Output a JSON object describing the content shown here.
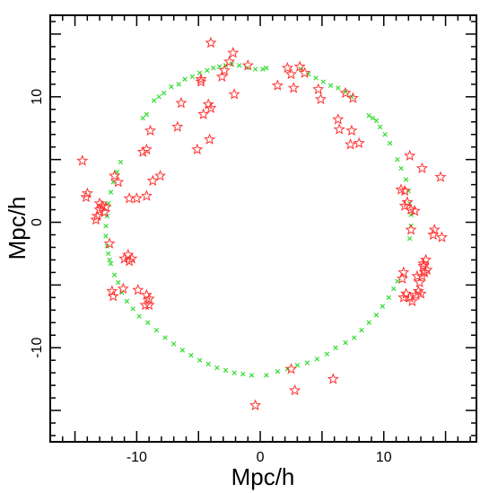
{
  "chart_data": {
    "type": "scatter",
    "xlabel": "Mpc/h",
    "ylabel": "Mpc/h",
    "xlim": [
      -17,
      17.5
    ],
    "ylim": [
      -17.5,
      16.5
    ],
    "x_ticks": [
      -10,
      0,
      10
    ],
    "y_ticks": [
      -10,
      0,
      10
    ],
    "grid": false,
    "legend": "none",
    "series": [
      {
        "marker": "cross",
        "color": "#33dd33",
        "points": [
          [
            -7.2,
            10.8
          ],
          [
            -6.6,
            11.0
          ],
          [
            -6.1,
            11.4
          ],
          [
            -5.5,
            11.6
          ],
          [
            -4.9,
            11.9
          ],
          [
            -4.3,
            12.1
          ],
          [
            -3.8,
            12.3
          ],
          [
            -3.3,
            12.4
          ],
          [
            -2.8,
            12.5
          ],
          [
            -2.3,
            12.6
          ],
          [
            -1.7,
            12.5
          ],
          [
            -1.1,
            12.3
          ],
          [
            -0.4,
            12.2
          ],
          [
            0.2,
            12.2
          ],
          [
            0.5,
            12.3
          ],
          [
            -9.5,
            8.3
          ],
          [
            -9.2,
            8.6
          ],
          [
            -8.6,
            9.7
          ],
          [
            -8.2,
            10.0
          ],
          [
            -7.8,
            10.3
          ],
          [
            3.3,
            12.2
          ],
          [
            3.9,
            11.8
          ],
          [
            4.5,
            11.5
          ],
          [
            5.1,
            11.2
          ],
          [
            5.7,
            10.9
          ],
          [
            6.3,
            10.7
          ],
          [
            6.9,
            10.4
          ],
          [
            7.4,
            10.0
          ],
          [
            8.8,
            8.5
          ],
          [
            9.1,
            8.3
          ],
          [
            9.4,
            8.1
          ],
          [
            9.7,
            7.6
          ],
          [
            10.1,
            7.0
          ],
          [
            10.5,
            6.3
          ],
          [
            11.1,
            5.0
          ],
          [
            11.4,
            4.3
          ],
          [
            11.8,
            3.4
          ],
          [
            12.0,
            2.5
          ],
          [
            12.1,
            1.5
          ],
          [
            12.2,
            0.6
          ],
          [
            12.2,
            -0.3
          ],
          [
            12.1,
            -1.3
          ],
          [
            -11.3,
            4.8
          ],
          [
            -11.6,
            4.0
          ],
          [
            -11.9,
            3.2
          ],
          [
            -12.1,
            2.4
          ],
          [
            -12.3,
            1.5
          ],
          [
            -12.4,
            0.5
          ],
          [
            -12.5,
            -0.3
          ],
          [
            -12.5,
            -1.1
          ],
          [
            -12.4,
            -1.9
          ],
          [
            -12.3,
            -2.5
          ],
          [
            -12.2,
            -3.0
          ],
          [
            -12.1,
            -3.3
          ],
          [
            -11.8,
            -4.2
          ],
          [
            -11.5,
            -4.8
          ],
          [
            -11.2,
            -5.6
          ],
          [
            -10.8,
            -6.3
          ],
          [
            -10.3,
            -6.9
          ],
          [
            -9.8,
            -7.5
          ],
          [
            -9.1,
            -8.0
          ],
          [
            -8.4,
            -8.6
          ],
          [
            -7.7,
            -9.2
          ],
          [
            -7.0,
            -9.7
          ],
          [
            -6.3,
            -10.2
          ],
          [
            -5.6,
            -10.6
          ],
          [
            -4.9,
            -11.0
          ],
          [
            -4.2,
            -11.3
          ],
          [
            -3.5,
            -11.6
          ],
          [
            -2.8,
            -11.8
          ],
          [
            -2.1,
            -12.0
          ],
          [
            -1.4,
            -12.1
          ],
          [
            -0.7,
            -12.2
          ],
          [
            0.5,
            -12.2
          ],
          [
            1.4,
            -11.9
          ],
          [
            2.2,
            -11.7
          ],
          [
            3.0,
            -11.4
          ],
          [
            3.8,
            -11.2
          ],
          [
            4.6,
            -10.9
          ],
          [
            5.4,
            -10.5
          ],
          [
            6.1,
            -10.0
          ],
          [
            6.9,
            -9.6
          ],
          [
            7.6,
            -9.2
          ],
          [
            8.2,
            -8.6
          ],
          [
            8.8,
            -8.0
          ],
          [
            9.4,
            -7.4
          ],
          [
            9.9,
            -6.7
          ],
          [
            10.4,
            -6.0
          ],
          [
            10.8,
            -5.3
          ],
          [
            11.1,
            -4.7
          ]
        ]
      },
      {
        "marker": "star",
        "color": "#ff3333",
        "points": [
          [
            -4.0,
            14.3
          ],
          [
            -2.2,
            13.5
          ],
          [
            -2.5,
            12.8
          ],
          [
            -2.9,
            12.1
          ],
          [
            -3.1,
            11.6
          ],
          [
            -4.8,
            11.4
          ],
          [
            -2.1,
            10.2
          ],
          [
            -4.2,
            9.4
          ],
          [
            -4.0,
            9.1
          ],
          [
            -4.6,
            8.6
          ],
          [
            -4.8,
            11.2
          ],
          [
            -6.4,
            9.5
          ],
          [
            -6.7,
            7.6
          ],
          [
            -4.1,
            6.6
          ],
          [
            -8.9,
            7.3
          ],
          [
            -5.1,
            5.8
          ],
          [
            -1.0,
            12.5
          ],
          [
            2.2,
            12.3
          ],
          [
            2.5,
            11.8
          ],
          [
            3.2,
            12.4
          ],
          [
            3.6,
            11.9
          ],
          [
            1.4,
            10.9
          ],
          [
            2.7,
            10.7
          ],
          [
            4.7,
            10.6
          ],
          [
            4.9,
            9.8
          ],
          [
            6.9,
            10.3
          ],
          [
            7.5,
            9.9
          ],
          [
            6.3,
            8.2
          ],
          [
            6.4,
            7.4
          ],
          [
            7.4,
            7.3
          ],
          [
            8.0,
            6.3
          ],
          [
            7.3,
            6.2
          ],
          [
            -14.4,
            4.9
          ],
          [
            -14.0,
            2.3
          ],
          [
            -14.1,
            2.0
          ],
          [
            -13.0,
            1.5
          ],
          [
            -12.8,
            1.3
          ],
          [
            -13.0,
            1.0
          ],
          [
            -12.5,
            1.2
          ],
          [
            -13.2,
            0.5
          ],
          [
            -13.3,
            0.2
          ],
          [
            -12.6,
            0.8
          ],
          [
            -11.8,
            3.7
          ],
          [
            -11.5,
            3.2
          ],
          [
            -10.6,
            1.9
          ],
          [
            -10.0,
            1.9
          ],
          [
            -9.2,
            2.1
          ],
          [
            -8.7,
            3.3
          ],
          [
            -8.1,
            3.7
          ],
          [
            -9.5,
            5.6
          ],
          [
            -9.2,
            5.8
          ],
          [
            -12.2,
            -1.7
          ],
          [
            -11.0,
            -2.9
          ],
          [
            -10.7,
            -2.6
          ],
          [
            -10.4,
            -2.9
          ],
          [
            -10.6,
            -3.1
          ],
          [
            -11.1,
            -5.3
          ],
          [
            -12.0,
            -5.5
          ],
          [
            -11.9,
            -5.9
          ],
          [
            -9.9,
            -5.4
          ],
          [
            -9.2,
            -5.8
          ],
          [
            -9.0,
            -6.1
          ],
          [
            -9.3,
            -6.6
          ],
          [
            -9.0,
            -6.6
          ],
          [
            12.1,
            5.3
          ],
          [
            13.1,
            4.3
          ],
          [
            14.6,
            3.6
          ],
          [
            11.4,
            2.6
          ],
          [
            11.7,
            2.5
          ],
          [
            11.9,
            1.6
          ],
          [
            11.7,
            1.3
          ],
          [
            12.2,
            1.0
          ],
          [
            12.5,
            0.9
          ],
          [
            12.2,
            -0.6
          ],
          [
            14.1,
            -0.6
          ],
          [
            14.0,
            -1.0
          ],
          [
            14.7,
            -1.2
          ],
          [
            11.6,
            -4.0
          ],
          [
            11.5,
            -4.5
          ],
          [
            12.7,
            -4.3
          ],
          [
            13.2,
            -3.3
          ],
          [
            13.4,
            -3.0
          ],
          [
            13.2,
            -3.5
          ],
          [
            13.5,
            -3.8
          ],
          [
            13.3,
            -4.0
          ],
          [
            13.1,
            -4.3
          ],
          [
            12.9,
            -4.8
          ],
          [
            12.8,
            -5.5
          ],
          [
            13.0,
            -5.7
          ],
          [
            12.6,
            -5.8
          ],
          [
            12.3,
            -6.3
          ],
          [
            12.1,
            -6.0
          ],
          [
            11.8,
            -5.7
          ],
          [
            11.6,
            -6.0
          ],
          [
            2.5,
            -11.7
          ],
          [
            2.8,
            -13.4
          ],
          [
            5.9,
            -12.5
          ],
          [
            -0.4,
            -14.6
          ]
        ]
      }
    ]
  }
}
